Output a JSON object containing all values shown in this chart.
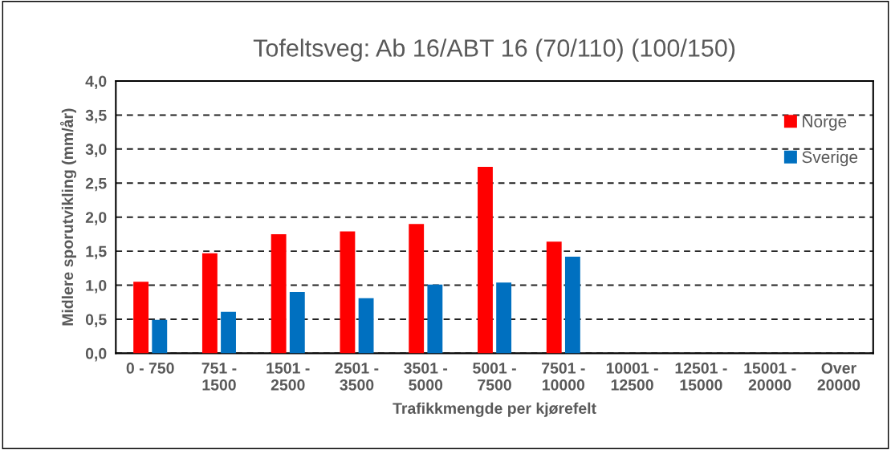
{
  "chart_data": {
    "type": "bar",
    "title": "Tofeltsveg: Ab 16/ABT 16 (70/110) (100/150)",
    "xlabel": "Trafikkmengde per kjørefelt",
    "ylabel": "Midlere sporutvikling (mm/år)",
    "categories": [
      "0 - 750",
      "751 -\n1500",
      "1501 -\n2500",
      "2501 -\n3500",
      "3501 -\n5000",
      "5001 -\n7500",
      "7501 -\n10000",
      "10001 -\n12500",
      "12501 -\n15000",
      "15001 -\n20000",
      "Over\n20000"
    ],
    "series": [
      {
        "name": "Norge",
        "color": "#ff0000",
        "values": [
          1.05,
          1.47,
          1.75,
          1.79,
          1.9,
          2.74,
          1.64,
          null,
          null,
          null,
          null
        ]
      },
      {
        "name": "Sverige",
        "color": "#0070c0",
        "values": [
          0.49,
          0.61,
          0.9,
          0.81,
          1.01,
          1.04,
          1.42,
          null,
          null,
          null,
          null
        ]
      }
    ],
    "ylim": [
      0,
      4
    ],
    "yticks": [
      {
        "value": 0,
        "label": "0,0"
      },
      {
        "value": 0.5,
        "label": "0,5"
      },
      {
        "value": 1,
        "label": "1,0"
      },
      {
        "value": 1.5,
        "label": "1,5"
      },
      {
        "value": 2,
        "label": "2,0"
      },
      {
        "value": 2.5,
        "label": "2,5"
      },
      {
        "value": 3,
        "label": "3,0"
      },
      {
        "value": 3.5,
        "label": "3,5"
      },
      {
        "value": 4,
        "label": "4,0"
      }
    ],
    "grid": "y",
    "line_style": "dashed",
    "legend": "top right"
  }
}
